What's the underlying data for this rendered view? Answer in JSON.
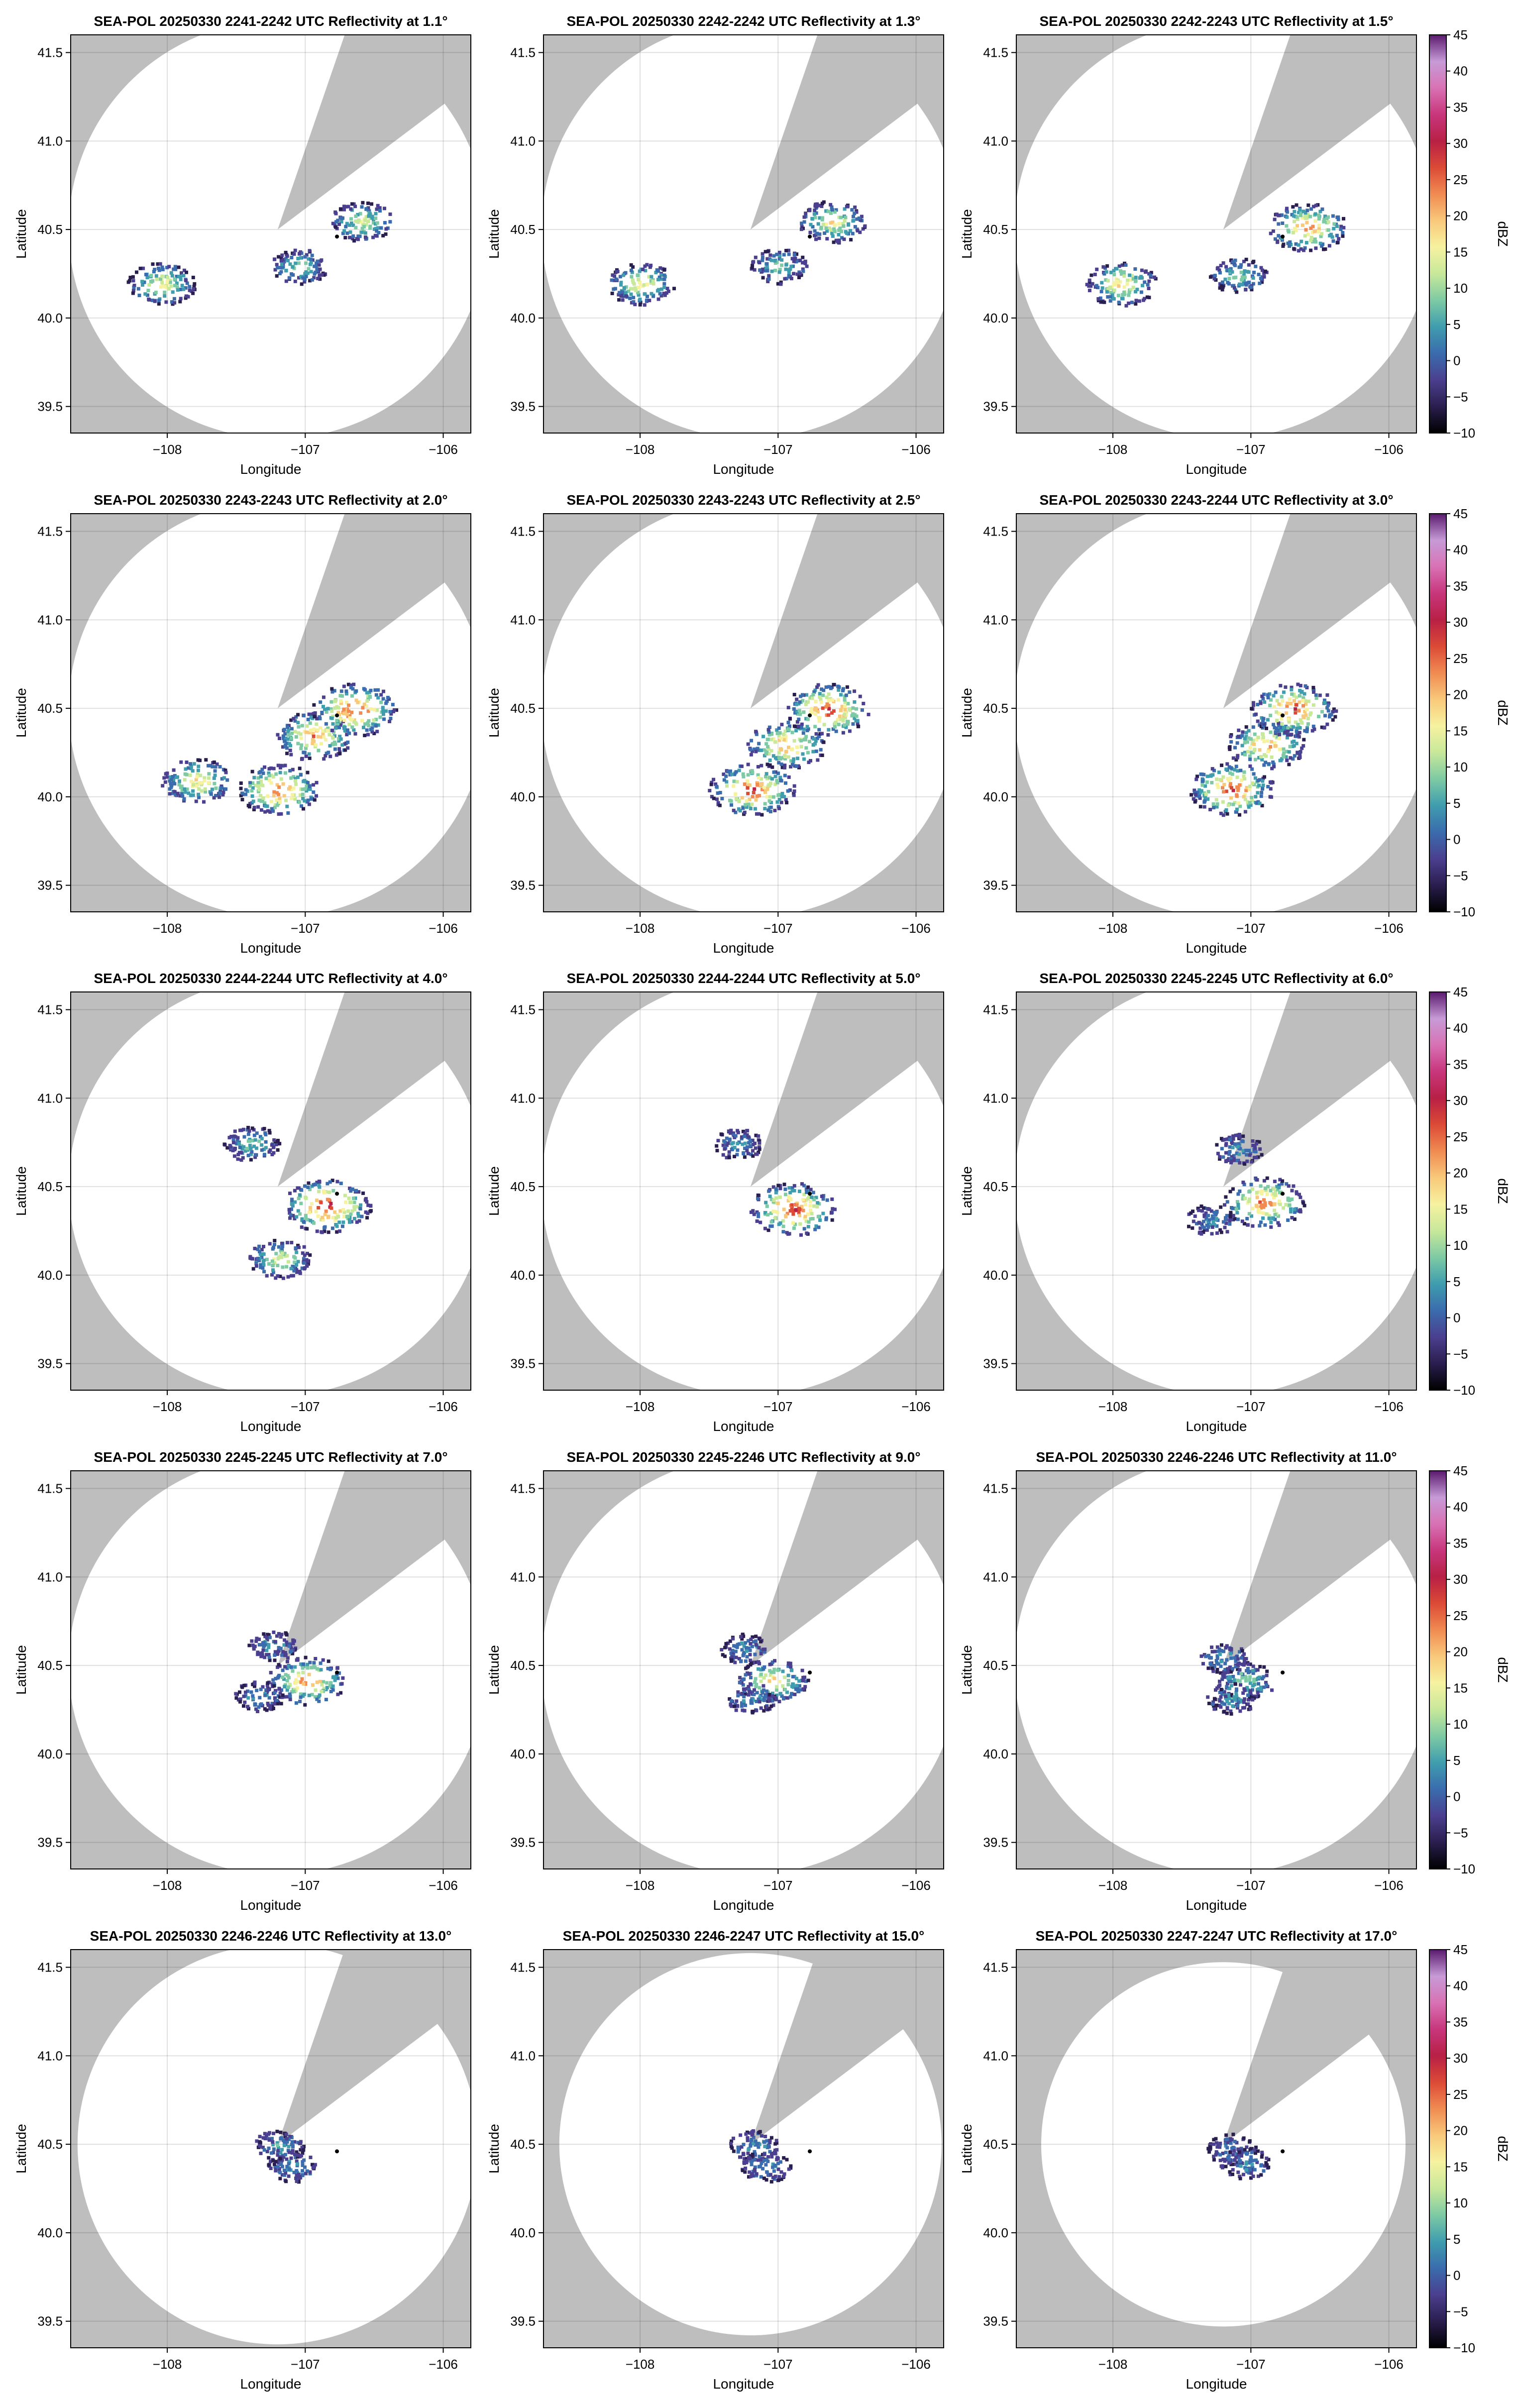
{
  "figure": {
    "xlabel": "Longitude",
    "ylabel": "Latitude",
    "colorbar_label": "dBZ",
    "colorbar_ticks": [
      "45",
      "40",
      "35",
      "30",
      "25",
      "20",
      "15",
      "10",
      "5",
      "0",
      "−5",
      "−10"
    ],
    "x_ticks": [
      "−108",
      "−107",
      "−106"
    ],
    "y_ticks": [
      "41.5",
      "41.0",
      "40.5",
      "40.0",
      "39.5"
    ],
    "colors": {
      "blocked_sector": "#bebebe",
      "scan_area": "#ffffff",
      "radar_marker": "#000000",
      "colormap": [
        "#000000",
        "#2a1e4f",
        "#4b3f8f",
        "#3a6cae",
        "#3f9dae",
        "#7dcaa4",
        "#c8e89a",
        "#f6f2a0",
        "#f9c97b",
        "#f08b52",
        "#dc4a36",
        "#b82045",
        "#c8367c",
        "#d872b4",
        "#c79bd7",
        "#5a1a6e"
      ]
    }
  },
  "chart_data": [
    {
      "type": "heatmap",
      "title": "SEA-POL 20250330 2241-2242 UTC Reflectivity at 1.1°",
      "elevation_deg": 1.1,
      "xlabel": "Longitude",
      "ylabel": "Latitude",
      "xlim": [
        -108.7,
        -105.8
      ],
      "ylim": [
        39.35,
        41.6
      ],
      "radar_location": [
        -106.77,
        40.46
      ],
      "colorbar": {
        "label": "dBZ",
        "range": [
          -10,
          45
        ]
      },
      "echoes": [
        {
          "lon": -108.05,
          "lat": 40.2,
          "max_dbz": 18
        },
        {
          "lon": -107.05,
          "lat": 40.3,
          "max_dbz": 10
        },
        {
          "lon": -106.6,
          "lat": 40.55,
          "max_dbz": 15
        }
      ]
    },
    {
      "type": "heatmap",
      "title": "SEA-POL 20250330 2242-2242 UTC Reflectivity at 1.3°",
      "elevation_deg": 1.3,
      "xlabel": "Longitude",
      "ylabel": "Latitude",
      "xlim": [
        -108.7,
        -105.8
      ],
      "ylim": [
        39.35,
        41.6
      ],
      "radar_location": [
        -106.77,
        40.46
      ],
      "colorbar": {
        "label": "dBZ",
        "range": [
          -10,
          45
        ]
      },
      "echoes": [
        {
          "lon": -108.0,
          "lat": 40.2,
          "max_dbz": 18
        },
        {
          "lon": -107.0,
          "lat": 40.3,
          "max_dbz": 10
        },
        {
          "lon": -106.62,
          "lat": 40.55,
          "max_dbz": 18
        }
      ]
    },
    {
      "type": "heatmap",
      "title": "SEA-POL 20250330 2242-2243 UTC Reflectivity at 1.5°",
      "elevation_deg": 1.5,
      "xlabel": "Longitude",
      "ylabel": "Latitude",
      "xlim": [
        -108.7,
        -105.8
      ],
      "ylim": [
        39.35,
        41.6
      ],
      "radar_location": [
        -106.77,
        40.46
      ],
      "colorbar": {
        "label": "dBZ",
        "range": [
          -10,
          45
        ]
      },
      "echoes": [
        {
          "lon": -107.95,
          "lat": 40.2,
          "max_dbz": 20
        },
        {
          "lon": -107.1,
          "lat": 40.25,
          "max_dbz": 10
        },
        {
          "lon": -106.6,
          "lat": 40.52,
          "max_dbz": 25
        }
      ]
    },
    {
      "type": "heatmap",
      "title": "SEA-POL 20250330 2243-2243 UTC Reflectivity at 2.0°",
      "elevation_deg": 2.0,
      "xlabel": "Longitude",
      "ylabel": "Latitude",
      "xlim": [
        -108.7,
        -105.8
      ],
      "ylim": [
        39.35,
        41.6
      ],
      "radar_location": [
        -106.77,
        40.46
      ],
      "colorbar": {
        "label": "dBZ",
        "range": [
          -10,
          45
        ]
      },
      "echoes": [
        {
          "lon": -107.8,
          "lat": 40.1,
          "max_dbz": 20
        },
        {
          "lon": -107.2,
          "lat": 40.05,
          "max_dbz": 28
        },
        {
          "lon": -106.95,
          "lat": 40.35,
          "max_dbz": 25
        },
        {
          "lon": -106.65,
          "lat": 40.5,
          "max_dbz": 30
        }
      ]
    },
    {
      "type": "heatmap",
      "title": "SEA-POL 20250330 2243-2243 UTC Reflectivity at 2.5°",
      "elevation_deg": 2.5,
      "xlabel": "Longitude",
      "ylabel": "Latitude",
      "xlim": [
        -108.7,
        -105.8
      ],
      "ylim": [
        39.35,
        41.6
      ],
      "radar_location": [
        -106.77,
        40.46
      ],
      "colorbar": {
        "label": "dBZ",
        "range": [
          -10,
          45
        ]
      },
      "echoes": [
        {
          "lon": -107.2,
          "lat": 40.05,
          "max_dbz": 30
        },
        {
          "lon": -106.95,
          "lat": 40.3,
          "max_dbz": 25
        },
        {
          "lon": -106.65,
          "lat": 40.5,
          "max_dbz": 30
        }
      ]
    },
    {
      "type": "heatmap",
      "title": "SEA-POL 20250330 2243-2244 UTC Reflectivity at 3.0°",
      "elevation_deg": 3.0,
      "xlabel": "Longitude",
      "ylabel": "Latitude",
      "xlim": [
        -108.7,
        -105.8
      ],
      "ylim": [
        39.35,
        41.6
      ],
      "radar_location": [
        -106.77,
        40.46
      ],
      "colorbar": {
        "label": "dBZ",
        "range": [
          -10,
          45
        ]
      },
      "echoes": [
        {
          "lon": -107.15,
          "lat": 40.05,
          "max_dbz": 30
        },
        {
          "lon": -106.9,
          "lat": 40.3,
          "max_dbz": 25
        },
        {
          "lon": -106.7,
          "lat": 40.5,
          "max_dbz": 30
        }
      ]
    },
    {
      "type": "heatmap",
      "title": "SEA-POL 20250330 2244-2244 UTC Reflectivity at 4.0°",
      "elevation_deg": 4.0,
      "xlabel": "Longitude",
      "ylabel": "Latitude",
      "xlim": [
        -108.7,
        -105.8
      ],
      "ylim": [
        39.35,
        41.6
      ],
      "radar_location": [
        -106.77,
        40.46
      ],
      "colorbar": {
        "label": "dBZ",
        "range": [
          -10,
          45
        ]
      },
      "echoes": [
        {
          "lon": -107.4,
          "lat": 40.75,
          "max_dbz": 10
        },
        {
          "lon": -106.85,
          "lat": 40.4,
          "max_dbz": 32
        },
        {
          "lon": -107.2,
          "lat": 40.1,
          "max_dbz": 15
        }
      ]
    },
    {
      "type": "heatmap",
      "title": "SEA-POL 20250330 2244-2244 UTC Reflectivity at 5.0°",
      "elevation_deg": 5.0,
      "xlabel": "Longitude",
      "ylabel": "Latitude",
      "xlim": [
        -108.7,
        -105.8
      ],
      "ylim": [
        39.35,
        41.6
      ],
      "radar_location": [
        -106.77,
        40.46
      ],
      "colorbar": {
        "label": "dBZ",
        "range": [
          -10,
          45
        ]
      },
      "echoes": [
        {
          "lon": -107.3,
          "lat": 40.75,
          "max_dbz": 5
        },
        {
          "lon": -106.9,
          "lat": 40.38,
          "max_dbz": 30
        }
      ]
    },
    {
      "type": "heatmap",
      "title": "SEA-POL 20250330 2245-2245 UTC Reflectivity at 6.0°",
      "elevation_deg": 6.0,
      "xlabel": "Longitude",
      "ylabel": "Latitude",
      "xlim": [
        -108.7,
        -105.8
      ],
      "ylim": [
        39.35,
        41.6
      ],
      "radar_location": [
        -106.77,
        40.46
      ],
      "colorbar": {
        "label": "dBZ",
        "range": [
          -10,
          45
        ]
      },
      "echoes": [
        {
          "lon": -107.1,
          "lat": 40.72,
          "max_dbz": 5
        },
        {
          "lon": -107.3,
          "lat": 40.32,
          "max_dbz": 5
        },
        {
          "lon": -106.92,
          "lat": 40.42,
          "max_dbz": 28
        }
      ]
    },
    {
      "type": "heatmap",
      "title": "SEA-POL 20250330 2245-2245 UTC Reflectivity at 7.0°",
      "elevation_deg": 7.0,
      "xlabel": "Longitude",
      "ylabel": "Latitude",
      "xlim": [
        -108.7,
        -105.8
      ],
      "ylim": [
        39.35,
        41.6
      ],
      "radar_location": [
        -106.77,
        40.46
      ],
      "colorbar": {
        "label": "dBZ",
        "range": [
          -10,
          45
        ]
      },
      "echoes": [
        {
          "lon": -107.25,
          "lat": 40.62,
          "max_dbz": 5
        },
        {
          "lon": -107.0,
          "lat": 40.42,
          "max_dbz": 25
        },
        {
          "lon": -107.35,
          "lat": 40.33,
          "max_dbz": 5
        }
      ]
    },
    {
      "type": "heatmap",
      "title": "SEA-POL 20250330 2245-2246 UTC Reflectivity at 9.0°",
      "elevation_deg": 9.0,
      "xlabel": "Longitude",
      "ylabel": "Latitude",
      "xlim": [
        -108.7,
        -105.8
      ],
      "ylim": [
        39.35,
        41.6
      ],
      "radar_location": [
        -106.77,
        40.46
      ],
      "colorbar": {
        "label": "dBZ",
        "range": [
          -10,
          45
        ]
      },
      "echoes": [
        {
          "lon": -107.25,
          "lat": 40.6,
          "max_dbz": 5
        },
        {
          "lon": -107.05,
          "lat": 40.42,
          "max_dbz": 20
        },
        {
          "lon": -107.2,
          "lat": 40.32,
          "max_dbz": 5
        }
      ]
    },
    {
      "type": "heatmap",
      "title": "SEA-POL 20250330 2246-2246 UTC Reflectivity at 11.0°",
      "elevation_deg": 11.0,
      "xlabel": "Longitude",
      "ylabel": "Latitude",
      "xlim": [
        -108.7,
        -105.8
      ],
      "ylim": [
        39.35,
        41.6
      ],
      "radar_location": [
        -106.77,
        40.46
      ],
      "colorbar": {
        "label": "dBZ",
        "range": [
          -10,
          45
        ]
      },
      "echoes": [
        {
          "lon": -107.2,
          "lat": 40.55,
          "max_dbz": 5
        },
        {
          "lon": -107.05,
          "lat": 40.42,
          "max_dbz": 12
        },
        {
          "lon": -107.15,
          "lat": 40.32,
          "max_dbz": 5
        }
      ]
    },
    {
      "type": "heatmap",
      "title": "SEA-POL 20250330 2246-2246 UTC Reflectivity at 13.0°",
      "elevation_deg": 13.0,
      "xlabel": "Longitude",
      "ylabel": "Latitude",
      "xlim": [
        -108.7,
        -105.8
      ],
      "ylim": [
        39.35,
        41.6
      ],
      "radar_location": [
        -106.77,
        40.46
      ],
      "colorbar": {
        "label": "dBZ",
        "range": [
          -10,
          45
        ]
      },
      "echoes": [
        {
          "lon": -107.2,
          "lat": 40.5,
          "max_dbz": 5
        },
        {
          "lon": -107.1,
          "lat": 40.38,
          "max_dbz": 5
        }
      ]
    },
    {
      "type": "heatmap",
      "title": "SEA-POL 20250330 2246-2247 UTC Reflectivity at 15.0°",
      "elevation_deg": 15.0,
      "xlabel": "Longitude",
      "ylabel": "Latitude",
      "xlim": [
        -108.7,
        -105.8
      ],
      "ylim": [
        39.35,
        41.6
      ],
      "radar_location": [
        -106.77,
        40.46
      ],
      "colorbar": {
        "label": "dBZ",
        "range": [
          -10,
          45
        ]
      },
      "echoes": [
        {
          "lon": -107.18,
          "lat": 40.5,
          "max_dbz": 5
        },
        {
          "lon": -107.1,
          "lat": 40.38,
          "max_dbz": 5
        }
      ]
    },
    {
      "type": "heatmap",
      "title": "SEA-POL 20250330 2247-2247 UTC Reflectivity at 17.0°",
      "elevation_deg": 17.0,
      "xlabel": "Longitude",
      "ylabel": "Latitude",
      "xlim": [
        -108.7,
        -105.8
      ],
      "ylim": [
        39.35,
        41.6
      ],
      "radar_location": [
        -106.77,
        40.46
      ],
      "colorbar": {
        "label": "dBZ",
        "range": [
          -10,
          45
        ]
      },
      "echoes": [
        {
          "lon": -107.15,
          "lat": 40.48,
          "max_dbz": 5
        },
        {
          "lon": -107.05,
          "lat": 40.4,
          "max_dbz": 5
        }
      ]
    }
  ]
}
